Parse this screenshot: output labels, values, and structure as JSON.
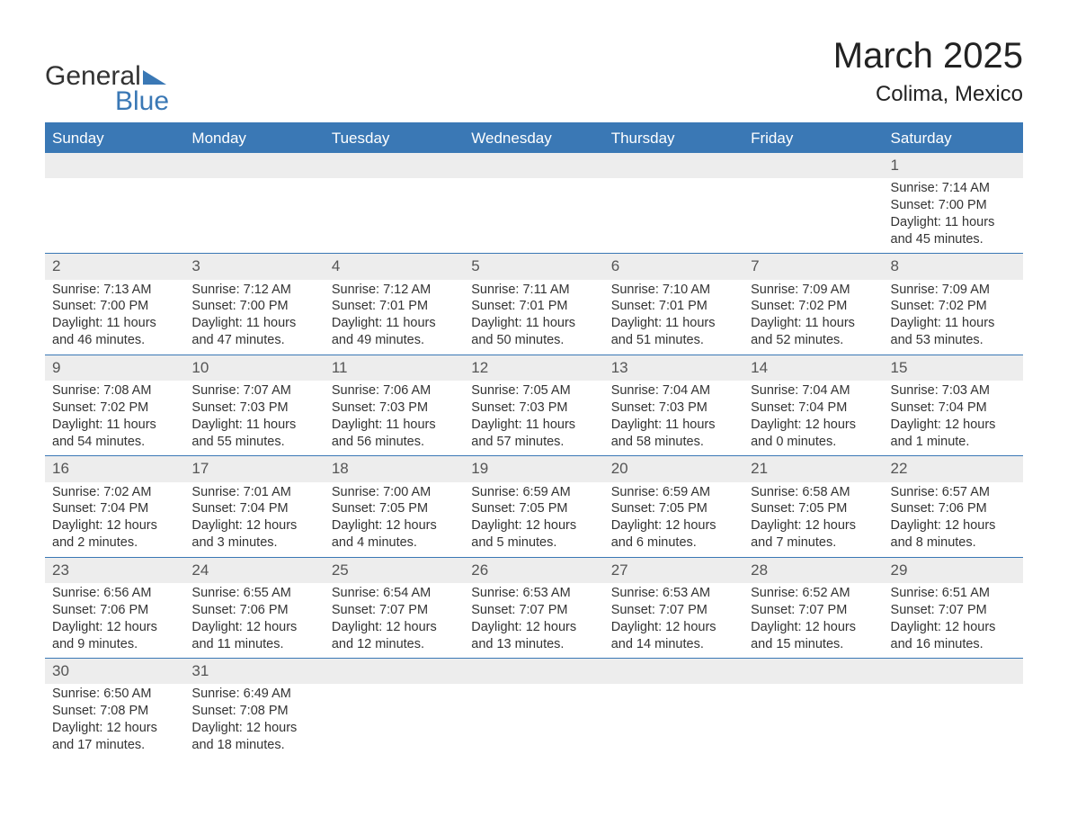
{
  "brand": {
    "name_part1": "General",
    "name_part2": "Blue",
    "triangle_color": "#3a78b5",
    "text_color_dark": "#333333",
    "text_color_accent": "#3a78b5"
  },
  "title": "March 2025",
  "location": "Colima, Mexico",
  "colors": {
    "header_bg": "#3a78b5",
    "header_text": "#ffffff",
    "daynum_bg": "#ededed",
    "border": "#3a78b5",
    "body_text": "#333333",
    "page_bg": "#ffffff"
  },
  "fonts": {
    "title_size_pt": 30,
    "location_size_pt": 18,
    "header_size_pt": 13,
    "cell_size_pt": 11
  },
  "day_headers": [
    "Sunday",
    "Monday",
    "Tuesday",
    "Wednesday",
    "Thursday",
    "Friday",
    "Saturday"
  ],
  "weeks": [
    {
      "nums": [
        "",
        "",
        "",
        "",
        "",
        "",
        "1"
      ],
      "cells": [
        null,
        null,
        null,
        null,
        null,
        null,
        {
          "sunrise": "Sunrise: 7:14 AM",
          "sunset": "Sunset: 7:00 PM",
          "day1": "Daylight: 11 hours",
          "day2": "and 45 minutes."
        }
      ]
    },
    {
      "nums": [
        "2",
        "3",
        "4",
        "5",
        "6",
        "7",
        "8"
      ],
      "cells": [
        {
          "sunrise": "Sunrise: 7:13 AM",
          "sunset": "Sunset: 7:00 PM",
          "day1": "Daylight: 11 hours",
          "day2": "and 46 minutes."
        },
        {
          "sunrise": "Sunrise: 7:12 AM",
          "sunset": "Sunset: 7:00 PM",
          "day1": "Daylight: 11 hours",
          "day2": "and 47 minutes."
        },
        {
          "sunrise": "Sunrise: 7:12 AM",
          "sunset": "Sunset: 7:01 PM",
          "day1": "Daylight: 11 hours",
          "day2": "and 49 minutes."
        },
        {
          "sunrise": "Sunrise: 7:11 AM",
          "sunset": "Sunset: 7:01 PM",
          "day1": "Daylight: 11 hours",
          "day2": "and 50 minutes."
        },
        {
          "sunrise": "Sunrise: 7:10 AM",
          "sunset": "Sunset: 7:01 PM",
          "day1": "Daylight: 11 hours",
          "day2": "and 51 minutes."
        },
        {
          "sunrise": "Sunrise: 7:09 AM",
          "sunset": "Sunset: 7:02 PM",
          "day1": "Daylight: 11 hours",
          "day2": "and 52 minutes."
        },
        {
          "sunrise": "Sunrise: 7:09 AM",
          "sunset": "Sunset: 7:02 PM",
          "day1": "Daylight: 11 hours",
          "day2": "and 53 minutes."
        }
      ]
    },
    {
      "nums": [
        "9",
        "10",
        "11",
        "12",
        "13",
        "14",
        "15"
      ],
      "cells": [
        {
          "sunrise": "Sunrise: 7:08 AM",
          "sunset": "Sunset: 7:02 PM",
          "day1": "Daylight: 11 hours",
          "day2": "and 54 minutes."
        },
        {
          "sunrise": "Sunrise: 7:07 AM",
          "sunset": "Sunset: 7:03 PM",
          "day1": "Daylight: 11 hours",
          "day2": "and 55 minutes."
        },
        {
          "sunrise": "Sunrise: 7:06 AM",
          "sunset": "Sunset: 7:03 PM",
          "day1": "Daylight: 11 hours",
          "day2": "and 56 minutes."
        },
        {
          "sunrise": "Sunrise: 7:05 AM",
          "sunset": "Sunset: 7:03 PM",
          "day1": "Daylight: 11 hours",
          "day2": "and 57 minutes."
        },
        {
          "sunrise": "Sunrise: 7:04 AM",
          "sunset": "Sunset: 7:03 PM",
          "day1": "Daylight: 11 hours",
          "day2": "and 58 minutes."
        },
        {
          "sunrise": "Sunrise: 7:04 AM",
          "sunset": "Sunset: 7:04 PM",
          "day1": "Daylight: 12 hours",
          "day2": "and 0 minutes."
        },
        {
          "sunrise": "Sunrise: 7:03 AM",
          "sunset": "Sunset: 7:04 PM",
          "day1": "Daylight: 12 hours",
          "day2": "and 1 minute."
        }
      ]
    },
    {
      "nums": [
        "16",
        "17",
        "18",
        "19",
        "20",
        "21",
        "22"
      ],
      "cells": [
        {
          "sunrise": "Sunrise: 7:02 AM",
          "sunset": "Sunset: 7:04 PM",
          "day1": "Daylight: 12 hours",
          "day2": "and 2 minutes."
        },
        {
          "sunrise": "Sunrise: 7:01 AM",
          "sunset": "Sunset: 7:04 PM",
          "day1": "Daylight: 12 hours",
          "day2": "and 3 minutes."
        },
        {
          "sunrise": "Sunrise: 7:00 AM",
          "sunset": "Sunset: 7:05 PM",
          "day1": "Daylight: 12 hours",
          "day2": "and 4 minutes."
        },
        {
          "sunrise": "Sunrise: 6:59 AM",
          "sunset": "Sunset: 7:05 PM",
          "day1": "Daylight: 12 hours",
          "day2": "and 5 minutes."
        },
        {
          "sunrise": "Sunrise: 6:59 AM",
          "sunset": "Sunset: 7:05 PM",
          "day1": "Daylight: 12 hours",
          "day2": "and 6 minutes."
        },
        {
          "sunrise": "Sunrise: 6:58 AM",
          "sunset": "Sunset: 7:05 PM",
          "day1": "Daylight: 12 hours",
          "day2": "and 7 minutes."
        },
        {
          "sunrise": "Sunrise: 6:57 AM",
          "sunset": "Sunset: 7:06 PM",
          "day1": "Daylight: 12 hours",
          "day2": "and 8 minutes."
        }
      ]
    },
    {
      "nums": [
        "23",
        "24",
        "25",
        "26",
        "27",
        "28",
        "29"
      ],
      "cells": [
        {
          "sunrise": "Sunrise: 6:56 AM",
          "sunset": "Sunset: 7:06 PM",
          "day1": "Daylight: 12 hours",
          "day2": "and 9 minutes."
        },
        {
          "sunrise": "Sunrise: 6:55 AM",
          "sunset": "Sunset: 7:06 PM",
          "day1": "Daylight: 12 hours",
          "day2": "and 11 minutes."
        },
        {
          "sunrise": "Sunrise: 6:54 AM",
          "sunset": "Sunset: 7:07 PM",
          "day1": "Daylight: 12 hours",
          "day2": "and 12 minutes."
        },
        {
          "sunrise": "Sunrise: 6:53 AM",
          "sunset": "Sunset: 7:07 PM",
          "day1": "Daylight: 12 hours",
          "day2": "and 13 minutes."
        },
        {
          "sunrise": "Sunrise: 6:53 AM",
          "sunset": "Sunset: 7:07 PM",
          "day1": "Daylight: 12 hours",
          "day2": "and 14 minutes."
        },
        {
          "sunrise": "Sunrise: 6:52 AM",
          "sunset": "Sunset: 7:07 PM",
          "day1": "Daylight: 12 hours",
          "day2": "and 15 minutes."
        },
        {
          "sunrise": "Sunrise: 6:51 AM",
          "sunset": "Sunset: 7:07 PM",
          "day1": "Daylight: 12 hours",
          "day2": "and 16 minutes."
        }
      ]
    },
    {
      "nums": [
        "30",
        "31",
        "",
        "",
        "",
        "",
        ""
      ],
      "cells": [
        {
          "sunrise": "Sunrise: 6:50 AM",
          "sunset": "Sunset: 7:08 PM",
          "day1": "Daylight: 12 hours",
          "day2": "and 17 minutes."
        },
        {
          "sunrise": "Sunrise: 6:49 AM",
          "sunset": "Sunset: 7:08 PM",
          "day1": "Daylight: 12 hours",
          "day2": "and 18 minutes."
        },
        null,
        null,
        null,
        null,
        null
      ]
    }
  ]
}
